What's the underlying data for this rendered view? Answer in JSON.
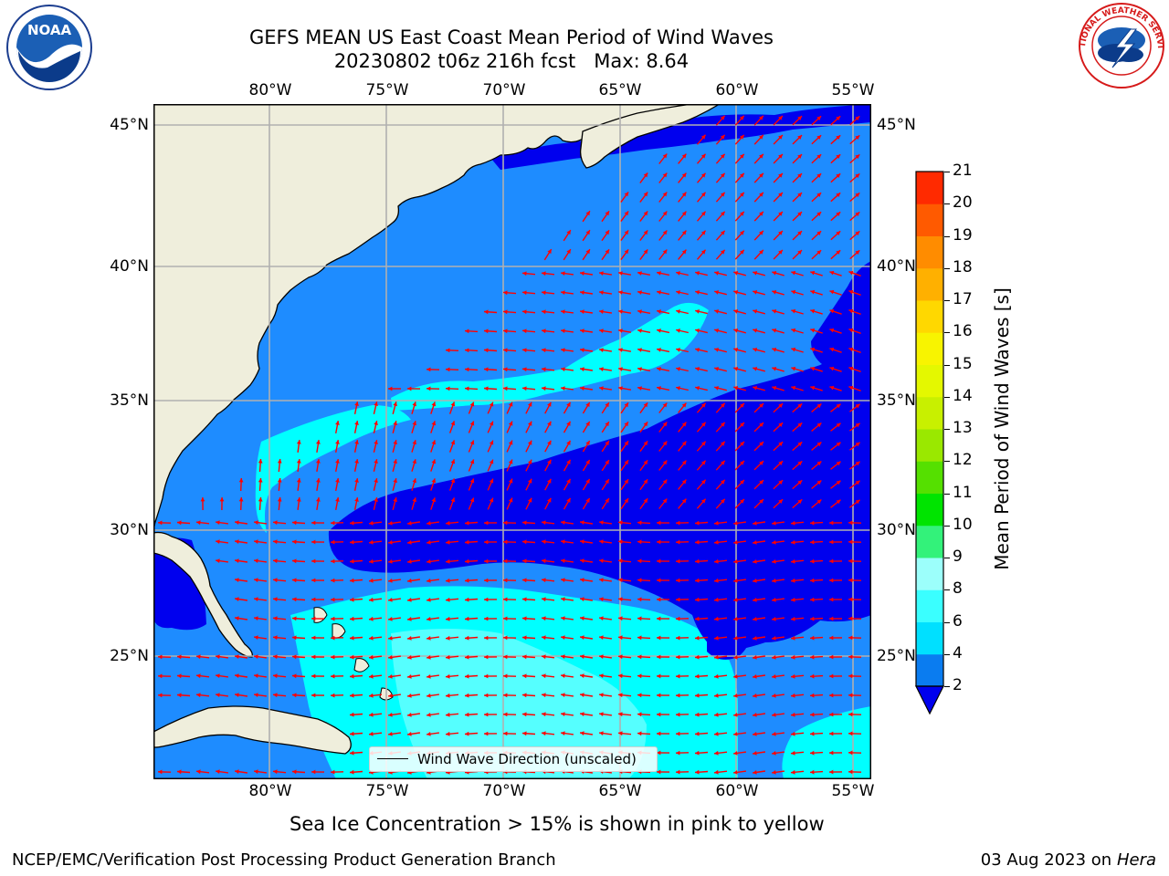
{
  "header": {
    "title_line1": "GEFS MEAN US East Coast Mean Period of Wind Waves",
    "title_line2": "20230802 t06z 216h fcst   Max: 8.64"
  },
  "logos": {
    "noaa_text": "NOAA",
    "nws_text": "NATIONAL WEATHER SERVICE"
  },
  "map": {
    "lon_labels": [
      "80°W",
      "75°W",
      "70°W",
      "65°W",
      "60°W",
      "55°W"
    ],
    "lat_labels": [
      "45°N",
      "40°N",
      "35°N",
      "30°N",
      "25°N"
    ],
    "legend_label": "Wind Wave Direction (unscaled)",
    "colors": {
      "land": "#efeedc",
      "class_2_4": "#1e8cff",
      "class_lt2": "#0000ee",
      "class_4_6": "#00ffff",
      "class_6_8": "#55ffff",
      "vector": "#ff0000"
    }
  },
  "colorbar": {
    "label": "Mean Period of Wind Waves [s]",
    "ticks": [
      "2",
      "4",
      "6",
      "8",
      "9",
      "10",
      "11",
      "12",
      "13",
      "14",
      "15",
      "16",
      "17",
      "18",
      "19",
      "20",
      "21"
    ],
    "colors": [
      "#0a7cf0",
      "#00e0ff",
      "#3affff",
      "#9cfffb",
      "#33f27a",
      "#00e400",
      "#55e000",
      "#9ae800",
      "#c8f000",
      "#e4f800",
      "#f8f400",
      "#ffd800",
      "#ffb000",
      "#ff8c00",
      "#ff5a00",
      "#ff2a00"
    ],
    "extend_color": "#0000ee"
  },
  "footer": {
    "sea_ice_note": "Sea Ice Concentration > 15% is shown in pink to yellow",
    "credit": "NCEP/EMC/Verification Post Processing Product Generation Branch",
    "date": "03 Aug 2023 on",
    "machine": "Hera"
  }
}
